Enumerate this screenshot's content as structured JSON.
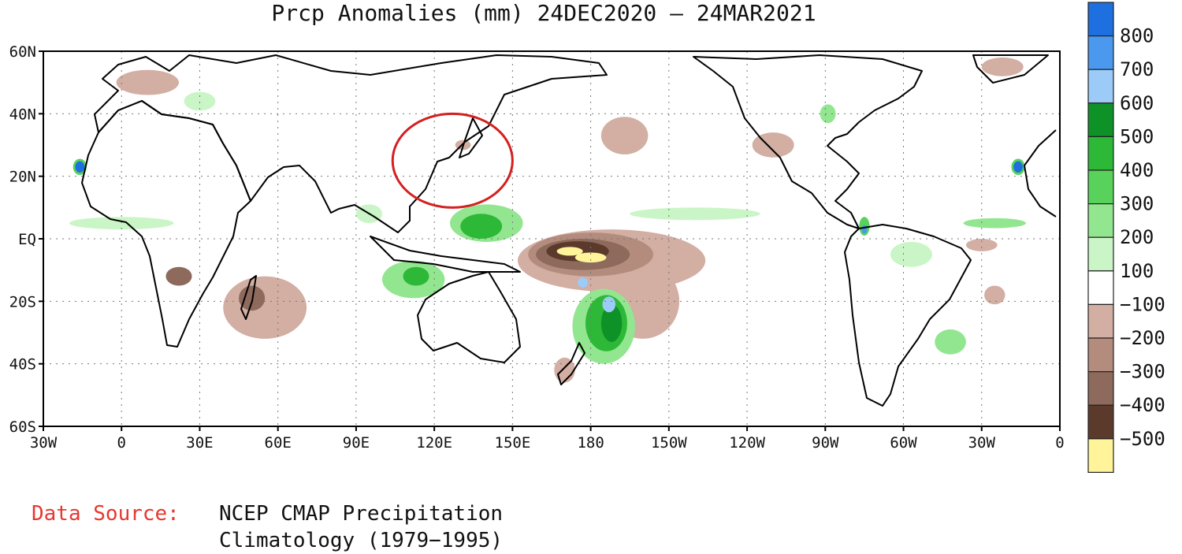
{
  "title": "Prcp Anomalies (mm) 24DEC2020 — 24MAR2021",
  "source": {
    "label": "Data Source:",
    "line1": "NCEP CMAP Precipitation",
    "line2": "Climatology (1979−1995)"
  },
  "map": {
    "lon_ticks": [
      {
        "value": -30,
        "label": "30W"
      },
      {
        "value": 0,
        "label": "0"
      },
      {
        "value": 30,
        "label": "30E"
      },
      {
        "value": 60,
        "label": "60E"
      },
      {
        "value": 90,
        "label": "90E"
      },
      {
        "value": 120,
        "label": "120E"
      },
      {
        "value": 150,
        "label": "150E"
      },
      {
        "value": 180,
        "label": "180"
      },
      {
        "value": 210,
        "label": "150W"
      },
      {
        "value": 240,
        "label": "120W"
      },
      {
        "value": 270,
        "label": "90W"
      },
      {
        "value": 300,
        "label": "60W"
      },
      {
        "value": 330,
        "label": "30W"
      },
      {
        "value": 360,
        "label": "0"
      }
    ],
    "lat_ticks": [
      {
        "value": 60,
        "label": "60N"
      },
      {
        "value": 40,
        "label": "40N"
      },
      {
        "value": 20,
        "label": "20N"
      },
      {
        "value": 0,
        "label": "EQ"
      },
      {
        "value": -20,
        "label": "20S"
      },
      {
        "value": -40,
        "label": "40S"
      },
      {
        "value": -60,
        "label": "60S"
      }
    ],
    "lon_range": [
      -30,
      360
    ],
    "lat_range": [
      -60,
      60
    ]
  },
  "legend": {
    "bins": [
      {
        "color": "#1e6fe0",
        "label": ""
      },
      {
        "color": "#4a99ee",
        "label": "800"
      },
      {
        "color": "#9ccbf8",
        "label": "700"
      },
      {
        "color": "#0e9228",
        "label": "600"
      },
      {
        "color": "#2eb838",
        "label": "500"
      },
      {
        "color": "#58d25a",
        "label": "400"
      },
      {
        "color": "#93e690",
        "label": "300"
      },
      {
        "color": "#caf5c6",
        "label": "200"
      },
      {
        "color": "#ffffff",
        "label": "100"
      },
      {
        "color": "#d2aea3",
        "label": "−100"
      },
      {
        "color": "#b38c7e",
        "label": "−200"
      },
      {
        "color": "#8d6a5c",
        "label": "−300"
      },
      {
        "color": "#5b3a2c",
        "label": "−400"
      },
      {
        "color": "#fff49a",
        "label": "−500"
      }
    ]
  },
  "anomalies": [
    {
      "lon": 170,
      "lat": -5,
      "rx": 12,
      "ry": 5,
      "color": "#d2aea3"
    },
    {
      "lon": 188,
      "lat": -7,
      "rx": 36,
      "ry": 10,
      "color": "#d2aea3"
    },
    {
      "lon": 200,
      "lat": -20,
      "rx": 14,
      "ry": 12,
      "color": "#d2aea3"
    },
    {
      "lon": 180,
      "lat": -5,
      "rx": 24,
      "ry": 7,
      "color": "#b38c7e"
    },
    {
      "lon": 177,
      "lat": -5,
      "rx": 18,
      "ry": 5,
      "color": "#8d6a5c"
    },
    {
      "lon": 175,
      "lat": -4,
      "rx": 12,
      "ry": 3.2,
      "color": "#5b3a2c"
    },
    {
      "lon": 172,
      "lat": -4,
      "rx": 5,
      "ry": 1.4,
      "color": "#fff49a"
    },
    {
      "lon": 180,
      "lat": -6,
      "rx": 6,
      "ry": 1.6,
      "color": "#fff49a"
    },
    {
      "lon": 185,
      "lat": -28,
      "rx": 12,
      "ry": 12,
      "color": "#93e690"
    },
    {
      "lon": 186,
      "lat": -27,
      "rx": 8,
      "ry": 9,
      "color": "#2eb838"
    },
    {
      "lon": 188,
      "lat": -27,
      "rx": 4,
      "ry": 6,
      "color": "#0e9228"
    },
    {
      "lon": 187,
      "lat": -21,
      "rx": 2.5,
      "ry": 2.5,
      "color": "#9ccbf8"
    },
    {
      "lon": 177,
      "lat": -14,
      "rx": 2,
      "ry": 1.6,
      "color": "#9ccbf8"
    },
    {
      "lon": 140,
      "lat": 5,
      "rx": 14,
      "ry": 6,
      "color": "#93e690"
    },
    {
      "lon": 138,
      "lat": 4,
      "rx": 8,
      "ry": 4,
      "color": "#2eb838"
    },
    {
      "lon": 112,
      "lat": -13,
      "rx": 12,
      "ry": 6,
      "color": "#93e690"
    },
    {
      "lon": 113,
      "lat": -12,
      "rx": 5,
      "ry": 3,
      "color": "#2eb838"
    },
    {
      "lon": 55,
      "lat": -22,
      "rx": 16,
      "ry": 10,
      "color": "#d2aea3"
    },
    {
      "lon": 50,
      "lat": -19,
      "rx": 5,
      "ry": 4,
      "color": "#8d6a5c"
    },
    {
      "lon": 22,
      "lat": -12,
      "rx": 5,
      "ry": 3,
      "color": "#8d6a5c"
    },
    {
      "lon": 193,
      "lat": 33,
      "rx": 9,
      "ry": 6,
      "color": "#d2aea3"
    },
    {
      "lon": 250,
      "lat": 30,
      "rx": 8,
      "ry": 4,
      "color": "#d2aea3"
    },
    {
      "lon": 131,
      "lat": 30,
      "rx": 3,
      "ry": 1.6,
      "color": "#d2aea3"
    },
    {
      "lon": 335,
      "lat": -18,
      "rx": 4,
      "ry": 3,
      "color": "#d2aea3"
    },
    {
      "lon": 305,
      "lat": -5,
      "rx": 5,
      "ry": 3,
      "color": "#d2aea3"
    },
    {
      "lon": 330,
      "lat": -2,
      "rx": 6,
      "ry": 2,
      "color": "#d2aea3"
    },
    {
      "lon": 10,
      "lat": 50,
      "rx": 12,
      "ry": 4,
      "color": "#d2aea3"
    },
    {
      "lon": 338,
      "lat": 55,
      "rx": 8,
      "ry": 3,
      "color": "#d2aea3"
    },
    {
      "lon": 170,
      "lat": -42,
      "rx": 4,
      "ry": 4,
      "color": "#d2aea3"
    },
    {
      "lon": 0,
      "lat": 5,
      "rx": 20,
      "ry": 2,
      "color": "#caf5c6"
    },
    {
      "lon": 95,
      "lat": 8,
      "rx": 5,
      "ry": 3,
      "color": "#caf5c6"
    },
    {
      "lon": 220,
      "lat": 8,
      "rx": 25,
      "ry": 2,
      "color": "#caf5c6"
    },
    {
      "lon": 303,
      "lat": -5,
      "rx": 8,
      "ry": 4,
      "color": "#caf5c6"
    },
    {
      "lon": 318,
      "lat": -33,
      "rx": 6,
      "ry": 4,
      "color": "#93e690"
    },
    {
      "lon": 271,
      "lat": 40,
      "rx": 3,
      "ry": 3,
      "color": "#93e690"
    },
    {
      "lon": 30,
      "lat": 44,
      "rx": 6,
      "ry": 3,
      "color": "#caf5c6"
    },
    {
      "lon": 335,
      "lat": 5,
      "rx": 12,
      "ry": 1.6,
      "color": "#93e690"
    },
    {
      "lon": 285,
      "lat": 4,
      "rx": 2,
      "ry": 3,
      "color": "#58d25a"
    },
    {
      "lon": -16,
      "lat": 23,
      "rx": 2.6,
      "ry": 2.6,
      "color": "#58d25a"
    },
    {
      "lon": -16,
      "lat": 23,
      "rx": 1.8,
      "ry": 1.8,
      "color": "#1e6fe0"
    },
    {
      "lon": 344,
      "lat": 23,
      "rx": 2.6,
      "ry": 2.6,
      "color": "#58d25a"
    },
    {
      "lon": 344,
      "lat": 23,
      "rx": 1.8,
      "ry": 1.8,
      "color": "#1e6fe0"
    },
    {
      "lon": 285,
      "lat": 3,
      "rx": 1,
      "ry": 1.4,
      "color": "#4a99ee"
    }
  ],
  "colors": {
    "highlight_circle": "#d42020"
  },
  "highlight": {
    "lon": 127,
    "lat": 25,
    "rlon": 23,
    "rlat": 15
  }
}
